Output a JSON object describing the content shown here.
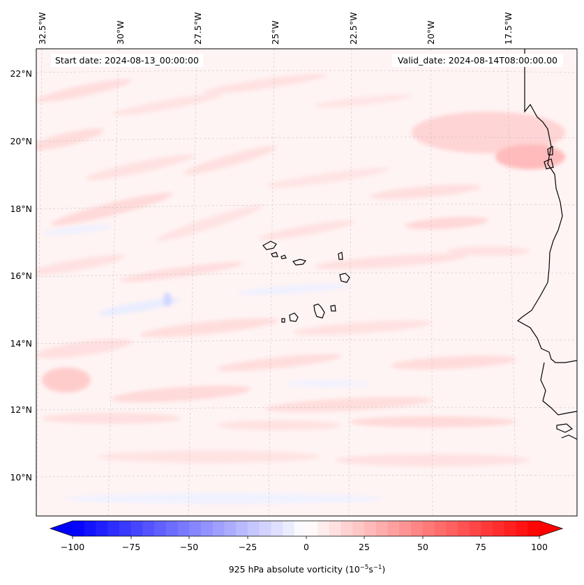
{
  "map": {
    "lon_labels": [
      "32.5°W",
      "30°W",
      "27.5°W",
      "25°W",
      "22.5°W",
      "20°W",
      "17.5°W"
    ],
    "lat_labels": [
      "22°N",
      "20°N",
      "18°N",
      "16°N",
      "14°N",
      "12°N",
      "10°N"
    ],
    "start_date": "Start date: 2024-08-13_00:00:00",
    "valid_date": "Valid_date: 2024-08-14T08:00:00.00"
  },
  "colorbar": {
    "ticks": [
      "−100",
      "−75",
      "−50",
      "−25",
      "0",
      "25",
      "50",
      "75",
      "100"
    ],
    "label_main": "925 hPa absolute vorticity (10",
    "label_exp1": "−5",
    "label_mid": "s",
    "label_exp2": "−1",
    "label_end": ")",
    "min": -100,
    "max": 100,
    "step": 5
  },
  "colors": {
    "negative": "#0000ff",
    "neutral": "#ffffff",
    "positive": "#ff0000",
    "coast": "#000000"
  }
}
